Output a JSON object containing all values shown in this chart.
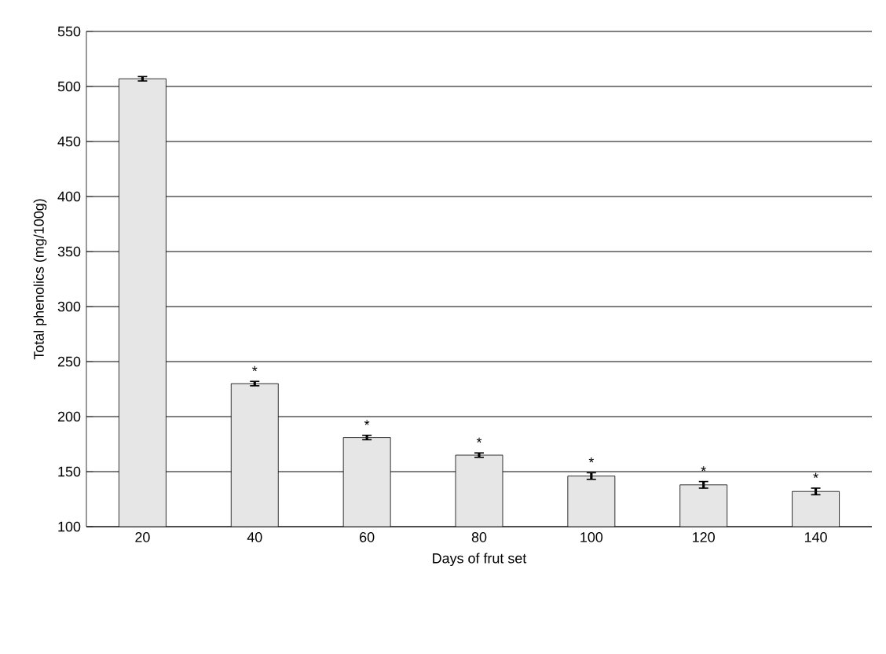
{
  "chart_data": {
    "type": "bar",
    "xlabel": "Days of frut set",
    "ylabel": "Total phenolics (mg/100g)",
    "categories": [
      "20",
      "40",
      "60",
      "80",
      "100",
      "120",
      "140"
    ],
    "values": [
      507,
      230,
      181,
      165,
      146,
      138,
      132
    ],
    "errors": [
      2,
      2,
      2,
      2,
      3,
      3,
      3
    ],
    "value_labels": [
      null,
      "*",
      "*",
      "*",
      "*",
      "*",
      "*"
    ],
    "color": "#e6e6e6",
    "ylim": [
      100,
      550
    ],
    "yticks": [
      100,
      150,
      200,
      250,
      300,
      350,
      400,
      450,
      500,
      550
    ],
    "grid": "y"
  }
}
